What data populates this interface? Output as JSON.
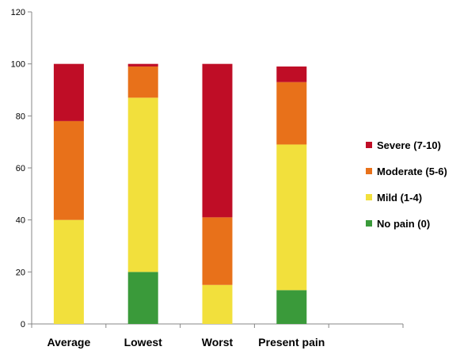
{
  "chart_data": {
    "type": "bar",
    "stacked": true,
    "title": "",
    "xlabel": "",
    "ylabel": "",
    "ylim": [
      0,
      120
    ],
    "yticks": [
      0,
      20,
      40,
      60,
      80,
      100,
      120
    ],
    "grid": false,
    "legend_position": "right",
    "categories": [
      "Average",
      "Lowest",
      "Worst",
      "Present pain"
    ],
    "series": [
      {
        "name": "No pain (0)",
        "color": "#3a9a3a",
        "values": [
          0,
          20,
          0,
          13
        ]
      },
      {
        "name": "Mild (1-4)",
        "color": "#f2e03c",
        "values": [
          40,
          67,
          15,
          56
        ]
      },
      {
        "name": "Moderate (5-6)",
        "color": "#e8711a",
        "values": [
          38,
          12,
          26,
          24
        ]
      },
      {
        "name": "Severe (7-10)",
        "color": "#bf0d26",
        "values": [
          22,
          1,
          59,
          6
        ]
      }
    ]
  }
}
